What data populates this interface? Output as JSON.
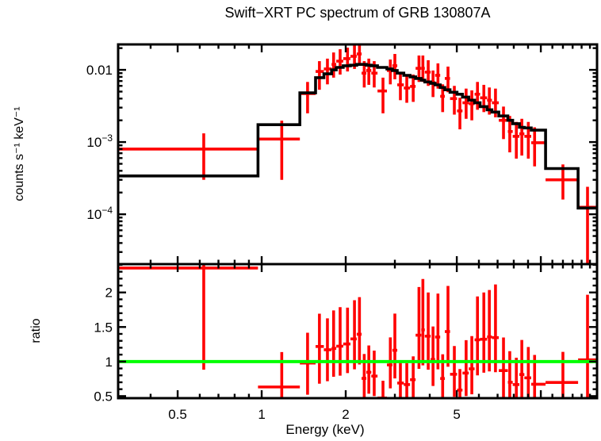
{
  "title": "Swift−XRT PC spectrum of GRB 130807A",
  "colors": {
    "data": "#ff0000",
    "model": "#000000",
    "reference_line": "#00ff00",
    "frame": "#000000",
    "background": "#ffffff"
  },
  "chart_data": [
    {
      "id": "spectrum-panel",
      "type": "scatter",
      "title": "Swift−XRT PC spectrum of GRB 130807A",
      "xlabel": "",
      "ylabel": "counts s⁻¹ keV⁻¹",
      "xscale": "log",
      "yscale": "log",
      "xlim": [
        0.306,
        15.9
      ],
      "ylim": [
        2.04e-05,
        0.0225
      ],
      "grid": false,
      "x_ticks": [
        {
          "v": 0.5,
          "label": "0.5"
        },
        {
          "v": 1,
          "label": "1"
        },
        {
          "v": 2,
          "label": "2"
        },
        {
          "v": 5,
          "label": "5"
        },
        {
          "v": 10,
          "label": ""
        }
      ],
      "x_minor_ticks": [
        0.4,
        0.6,
        0.7,
        0.8,
        0.9,
        3,
        4,
        6,
        7,
        8,
        9,
        11,
        12,
        13,
        14,
        15
      ],
      "y_ticks": [
        {
          "v": 0.01,
          "base": "0.01",
          "exp": ""
        },
        {
          "v": 0.001,
          "base": "10",
          "exp": "−3"
        },
        {
          "v": 0.0001,
          "base": "10",
          "exp": "−4"
        }
      ],
      "series": [
        {
          "name": "observed-data",
          "style": "cross-error-bars",
          "color": "#ff0000",
          "columns": [
            "E_keV",
            "E_lo_keV",
            "E_hi_keV",
            "rate",
            "rate_lo",
            "rate_hi",
            "model_rate"
          ],
          "points": [
            [
              0.62,
              0.3,
              0.97,
              0.0008,
              0.0003,
              0.00132,
              0.00034
            ],
            [
              1.18,
              0.97,
              1.37,
              0.0011,
              0.0003,
              0.00198,
              0.00174
            ],
            [
              1.46,
              1.37,
              1.56,
              0.0047,
              0.0025,
              0.0068,
              0.0048
            ],
            [
              1.61,
              1.56,
              1.67,
              0.0095,
              0.0053,
              0.0132,
              0.0078
            ],
            [
              1.72,
              1.67,
              1.78,
              0.0103,
              0.0063,
              0.0143,
              0.0088
            ],
            [
              1.81,
              1.78,
              1.85,
              0.0119,
              0.0078,
              0.0174,
              0.01
            ],
            [
              1.91,
              1.85,
              1.96,
              0.0132,
              0.0086,
              0.0193,
              0.0108
            ],
            [
              2.03,
              1.96,
              2.08,
              0.0143,
              0.0095,
              0.0203,
              0.0114
            ],
            [
              2.15,
              2.08,
              2.19,
              0.0154,
              0.0103,
              0.0219,
              0.0116
            ],
            [
              2.24,
              2.19,
              2.28,
              0.0166,
              0.0114,
              0.023,
              0.0119
            ],
            [
              2.33,
              2.28,
              2.37,
              0.009,
              0.0057,
              0.0132,
              0.0119
            ],
            [
              2.42,
              2.37,
              2.47,
              0.0098,
              0.0062,
              0.0143,
              0.0116
            ],
            [
              2.53,
              2.47,
              2.6,
              0.009,
              0.0057,
              0.0132,
              0.0114
            ],
            [
              2.72,
              2.6,
              2.81,
              0.0051,
              0.0025,
              0.0078,
              0.0108
            ],
            [
              2.89,
              2.81,
              2.94,
              0.0098,
              0.0063,
              0.0139,
              0.0103
            ],
            [
              3.0,
              2.94,
              3.06,
              0.0114,
              0.0074,
              0.0166,
              0.0098
            ],
            [
              3.14,
              3.06,
              3.23,
              0.0062,
              0.0038,
              0.009,
              0.009
            ],
            [
              3.31,
              3.23,
              3.4,
              0.0056,
              0.0035,
              0.0082,
              0.0084
            ],
            [
              3.49,
              3.4,
              3.56,
              0.0059,
              0.0036,
              0.0086,
              0.008
            ],
            [
              3.66,
              3.56,
              3.73,
              0.0105,
              0.0068,
              0.0158,
              0.0076
            ],
            [
              3.78,
              3.73,
              3.84,
              0.0105,
              0.0068,
              0.0158,
              0.0072
            ],
            [
              3.95,
              3.84,
              4.03,
              0.0093,
              0.006,
              0.0136,
              0.0068
            ],
            [
              4.11,
              4.03,
              4.18,
              0.0067,
              0.0042,
              0.0098,
              0.0065
            ],
            [
              4.28,
              4.18,
              4.36,
              0.0084,
              0.0055,
              0.0123,
              0.0062
            ],
            [
              4.45,
              4.36,
              4.53,
              0.0043,
              0.0026,
              0.0063,
              0.0057
            ],
            [
              4.65,
              4.53,
              4.73,
              0.0076,
              0.0049,
              0.0111,
              0.0053
            ],
            [
              4.9,
              4.73,
              5.01,
              0.004,
              0.0024,
              0.006,
              0.0049
            ],
            [
              5.13,
              5.01,
              5.24,
              0.0027,
              0.0015,
              0.0041,
              0.0046
            ],
            [
              5.4,
              5.24,
              5.52,
              0.0035,
              0.0021,
              0.0055,
              0.0042
            ],
            [
              5.66,
              5.52,
              5.79,
              0.0034,
              0.002,
              0.0052,
              0.0038
            ],
            [
              5.93,
              5.79,
              6.06,
              0.0046,
              0.0028,
              0.0068,
              0.0035
            ],
            [
              6.25,
              6.06,
              6.42,
              0.0041,
              0.0026,
              0.0062,
              0.0031
            ],
            [
              6.54,
              6.42,
              6.68,
              0.0038,
              0.0024,
              0.0057,
              0.0028
            ],
            [
              6.88,
              6.68,
              7.07,
              0.0035,
              0.0022,
              0.0055,
              0.0026
            ],
            [
              7.35,
              7.07,
              7.62,
              0.002,
              0.0011,
              0.0031,
              0.0023
            ],
            [
              7.74,
              7.62,
              7.93,
              0.0014,
              0.00072,
              0.0023,
              0.002
            ],
            [
              8.17,
              7.93,
              8.38,
              0.0012,
              0.00059,
              0.0019,
              0.0018
            ],
            [
              8.55,
              8.38,
              8.73,
              0.0013,
              0.00065,
              0.0021,
              0.0016
            ],
            [
              9.02,
              8.73,
              9.24,
              0.0012,
              0.00059,
              0.0019,
              0.00157
            ],
            [
              9.5,
              9.24,
              10.4,
              0.00098,
              0.00046,
              0.0016,
              0.00146
            ],
            [
              12.0,
              10.4,
              13.6,
              0.0003,
              0.00016,
              0.00049,
              0.00043
            ],
            [
              14.7,
              13.6,
              15.9,
              0.000125,
              1.9e-05,
              0.00024,
              0.000122
            ]
          ]
        },
        {
          "name": "folded-model",
          "style": "histogram-steps",
          "color": "#000000",
          "note": "step level per bin = model_rate column of observed-data points"
        }
      ]
    },
    {
      "id": "ratio-panel",
      "type": "scatter",
      "xlabel": "Energy (keV)",
      "ylabel": "ratio",
      "xscale": "log",
      "yscale": "linear",
      "xlim": [
        0.306,
        15.9
      ],
      "ylim": [
        0.47,
        2.41
      ],
      "grid": false,
      "y_ticks": [
        {
          "v": 0.5,
          "label": "0.5"
        },
        {
          "v": 1,
          "label": "1"
        },
        {
          "v": 1.5,
          "label": "1.5"
        },
        {
          "v": 2,
          "label": "2"
        }
      ],
      "y_minor_step": 0.1,
      "reference_line": {
        "y": 1.0,
        "color": "#00ff00"
      },
      "series": [
        {
          "name": "data-to-model-ratio",
          "style": "cross-error-bars",
          "color": "#ff0000",
          "note": "ratio = rate/model_rate, ratio_lo = rate_lo/model_rate, ratio_hi = rate_hi/model_rate, derived per bin from spectrum-panel points"
        }
      ]
    }
  ]
}
